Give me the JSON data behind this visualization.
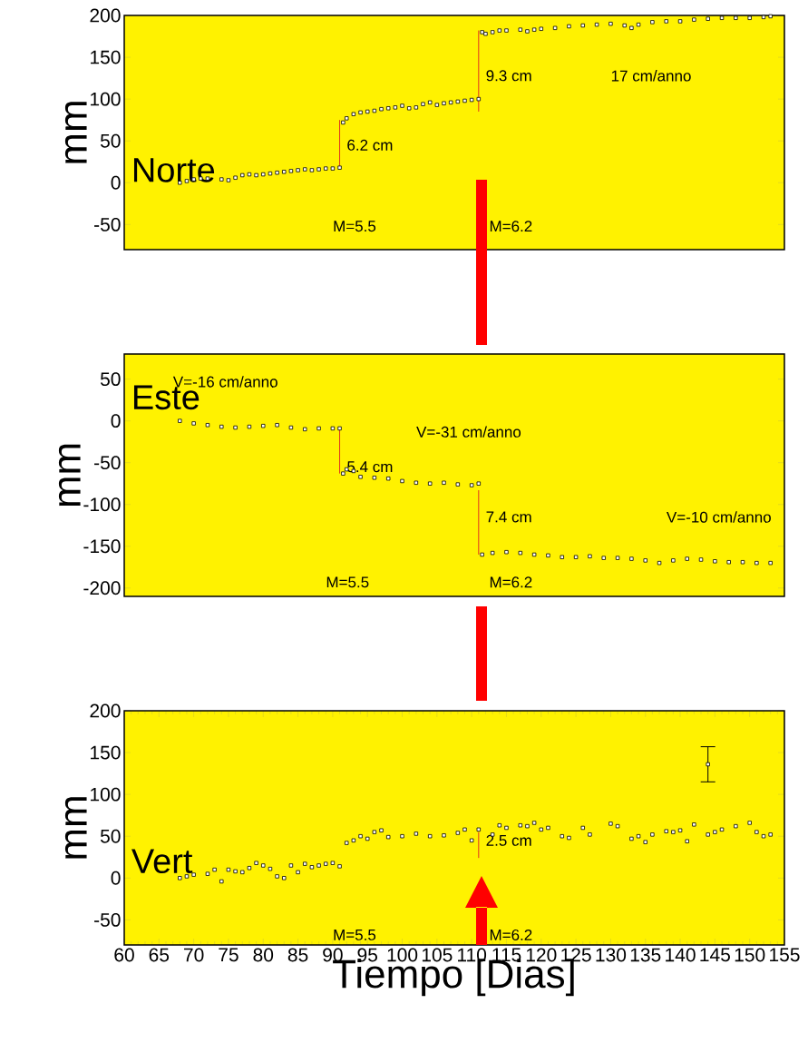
{
  "chart_data": [
    {
      "type": "scatter",
      "ylabel": "mm",
      "xlim": [
        60,
        155
      ],
      "ylim": [
        -80,
        200
      ],
      "yticks": [
        -50,
        0,
        50,
        100,
        150,
        200
      ],
      "tick_labels": "y",
      "marker": "square",
      "series": [
        {
          "color": "#000000",
          "x": [
            68,
            69,
            70,
            71,
            72,
            74,
            75,
            76,
            77,
            78,
            79,
            80,
            81,
            82,
            83,
            84,
            85,
            86,
            87,
            88,
            89,
            90,
            91,
            91.5,
            92,
            93,
            94,
            95,
            96,
            97,
            98,
            99,
            100,
            101,
            102,
            103,
            104,
            105,
            106,
            107,
            108,
            109,
            110,
            111,
            111.5,
            112,
            113,
            114,
            115,
            117,
            118,
            119,
            120,
            122,
            124,
            126,
            128,
            130,
            132,
            133,
            134,
            136,
            138,
            140,
            142,
            144,
            146,
            148,
            150,
            152,
            153
          ],
          "values": [
            0,
            2,
            4,
            5,
            5,
            4,
            3,
            6,
            9,
            10,
            9,
            10,
            11,
            12,
            13,
            14,
            15,
            16,
            15,
            16,
            17,
            17,
            18,
            72,
            77,
            82,
            84,
            85,
            86,
            88,
            89,
            90,
            92,
            89,
            90,
            94,
            96,
            93,
            95,
            96,
            97,
            98,
            99,
            100,
            180,
            178,
            180,
            182,
            182,
            183,
            181,
            183,
            184,
            185,
            187,
            188,
            189,
            190,
            188,
            185,
            189,
            192,
            193,
            193,
            195,
            196,
            197,
            197,
            197,
            198,
            199
          ]
        },
        {
          "type": "line",
          "marker": "none",
          "color": "#e0301e",
          "x": [
            91,
            91
          ],
          "values": [
            18,
            75
          ]
        },
        {
          "type": "line",
          "marker": "none",
          "color": "#e0301e",
          "x": [
            111,
            111
          ],
          "values": [
            85,
            182
          ]
        }
      ],
      "annotations": [
        "Norte",
        "6.2 cm",
        "9.3 cm",
        "17 cm/anno",
        "M=5.5",
        "M=6.2"
      ]
    },
    {
      "type": "scatter",
      "ylabel": "mm",
      "xlim": [
        60,
        155
      ],
      "ylim": [
        -210,
        80
      ],
      "yticks": [
        -200,
        -150,
        -100,
        -50,
        0,
        50
      ],
      "tick_labels": "y",
      "marker": "square",
      "series": [
        {
          "color": "#000000",
          "x": [
            68,
            70,
            72,
            74,
            76,
            78,
            80,
            82,
            84,
            86,
            88,
            90,
            91,
            91.5,
            92,
            93,
            94,
            96,
            98,
            100,
            102,
            104,
            106,
            108,
            110,
            111,
            111.5,
            113,
            115,
            117,
            119,
            121,
            123,
            125,
            127,
            129,
            131,
            133,
            135,
            137,
            139,
            141,
            143,
            145,
            147,
            149,
            151,
            153
          ],
          "values": [
            0,
            -3,
            -5,
            -7,
            -8,
            -7,
            -6,
            -5,
            -8,
            -10,
            -9,
            -9,
            -9,
            -63,
            -58,
            -60,
            -67,
            -68,
            -69,
            -72,
            -74,
            -75,
            -74,
            -76,
            -77,
            -75,
            -160,
            -158,
            -157,
            -158,
            -160,
            -161,
            -163,
            -163,
            -162,
            -164,
            -164,
            -165,
            -167,
            -170,
            -167,
            -165,
            -166,
            -168,
            -169,
            -169,
            -170,
            -170
          ]
        },
        {
          "type": "line",
          "marker": "none",
          "color": "#e0301e",
          "x": [
            91,
            91
          ],
          "values": [
            -9,
            -63
          ]
        },
        {
          "type": "line",
          "marker": "none",
          "color": "#e0301e",
          "x": [
            111,
            111
          ],
          "values": [
            -83,
            -160
          ]
        }
      ],
      "annotations": [
        "Este",
        "V=-16 cm/anno",
        "V=-31 cm/anno",
        "5.4 cm",
        "7.4 cm",
        "V=-10 cm/anno",
        "M=5.5",
        "M=6.2"
      ]
    },
    {
      "type": "scatter",
      "ylabel": "mm",
      "xlabel": "Tiempo [Dias]",
      "xlim": [
        60,
        155
      ],
      "ylim": [
        -80,
        200
      ],
      "xticks": [
        60,
        65,
        70,
        75,
        80,
        85,
        90,
        95,
        100,
        105,
        110,
        115,
        120,
        125,
        130,
        135,
        140,
        145,
        150,
        155
      ],
      "yticks": [
        -50,
        0,
        50,
        100,
        150,
        200
      ],
      "marker": "square",
      "series": [
        {
          "color": "#000000",
          "x": [
            68,
            69,
            70,
            72,
            73,
            74,
            75,
            76,
            77,
            78,
            79,
            80,
            81,
            82,
            83,
            84,
            85,
            86,
            87,
            88,
            89,
            90,
            91,
            92,
            93,
            94,
            95,
            96,
            97,
            98,
            100,
            102,
            104,
            106,
            108,
            109,
            110,
            111,
            113,
            114,
            115,
            117,
            118,
            119,
            120,
            121,
            123,
            124,
            126,
            127,
            130,
            131,
            133,
            134,
            135,
            136,
            138,
            139,
            140,
            141,
            142,
            144,
            145,
            146,
            148,
            150,
            151,
            152,
            153
          ],
          "values": [
            0,
            2,
            4,
            5,
            10,
            -4,
            10,
            8,
            7,
            12,
            18,
            15,
            11,
            2,
            0,
            15,
            7,
            17,
            13,
            15,
            17,
            18,
            14,
            42,
            45,
            50,
            47,
            55,
            57,
            49,
            50,
            53,
            50,
            51,
            54,
            58,
            45,
            58,
            52,
            63,
            60,
            63,
            62,
            66,
            58,
            60,
            50,
            48,
            60,
            52,
            65,
            62,
            47,
            50,
            43,
            52,
            56,
            55,
            57,
            44,
            64,
            52,
            55,
            58,
            62,
            66,
            55,
            50,
            52
          ]
        },
        {
          "color": "#000000",
          "x": [
            144
          ],
          "values": [
            136
          ],
          "errors": [
            21
          ]
        },
        {
          "type": "line",
          "marker": "none",
          "color": "#e0301e",
          "x": [
            111,
            111
          ],
          "values": [
            24,
            55
          ]
        }
      ],
      "annotations": [
        "Vert",
        "2.5 cm",
        "M=5.5",
        "M=6.2"
      ]
    }
  ]
}
